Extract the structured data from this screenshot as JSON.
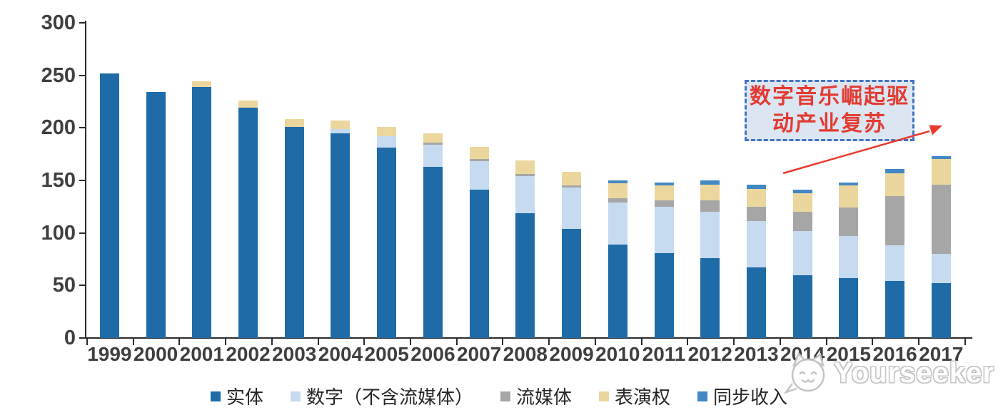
{
  "chart_data": {
    "type": "bar",
    "stacked": true,
    "title": "",
    "xlabel": "",
    "ylabel": "",
    "categories": [
      "1999",
      "2000",
      "2001",
      "2002",
      "2003",
      "2004",
      "2005",
      "2006",
      "2007",
      "2008",
      "2009",
      "2010",
      "2011",
      "2012",
      "2013",
      "2014",
      "2015",
      "2016",
      "2017"
    ],
    "series": [
      {
        "name": "实体",
        "color": "#1e6ba8",
        "values": [
          252,
          234,
          239,
          219,
          201,
          195,
          181,
          163,
          141,
          119,
          104,
          89,
          81,
          76,
          67,
          60,
          57,
          54,
          52
        ]
      },
      {
        "name": "数字（不含流媒体）",
        "color": "#c6daf0",
        "values": [
          0,
          0,
          0,
          0,
          0,
          4,
          11,
          21,
          27,
          35,
          39,
          40,
          44,
          44,
          44,
          42,
          40,
          34,
          28
        ]
      },
      {
        "name": "流媒体",
        "color": "#a6a6a6",
        "values": [
          0,
          0,
          0,
          0,
          0,
          0,
          0,
          2,
          2,
          2,
          2,
          4,
          6,
          11,
          14,
          18,
          27,
          47,
          66
        ]
      },
      {
        "name": "表演权",
        "color": "#ebd79e",
        "values": [
          0,
          0,
          5,
          7,
          7,
          8,
          9,
          9,
          12,
          13,
          13,
          14,
          14,
          15,
          17,
          18,
          21,
          22,
          24
        ]
      },
      {
        "name": "同步收入",
        "color": "#4288c5",
        "values": [
          0,
          0,
          0,
          0,
          0,
          0,
          0,
          0,
          0,
          0,
          0,
          3,
          3,
          4,
          4,
          3,
          3,
          4,
          3
        ]
      }
    ],
    "ylim": [
      0,
      300
    ],
    "yticks": [
      0,
      50,
      100,
      150,
      200,
      250,
      300
    ],
    "grid": false,
    "legend_position": "bottom"
  },
  "annotation": {
    "line1": "数字音乐崛起驱",
    "line2": "动产业复苏",
    "text_color": "#e23b33",
    "box_fill": "#dbe6f2",
    "box_border": "#4472c4",
    "arrow_color": "#e8392e"
  },
  "watermark": {
    "text": "Yourseeker",
    "icon": "yourseeker-cat-logo"
  },
  "colors": {
    "axis": "#2b2b2b",
    "tick_label": "#3f3f3f",
    "background": "#ffffff"
  }
}
